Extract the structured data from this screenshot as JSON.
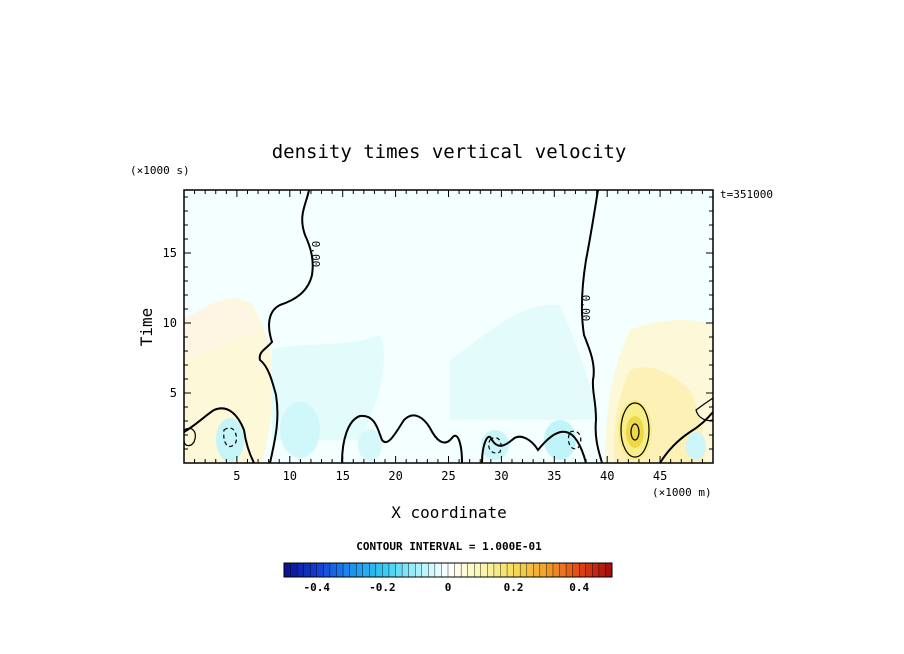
{
  "chart_data": {
    "type": "heatmap",
    "title": "density times vertical velocity",
    "xlabel": "X coordinate",
    "ylabel": "Time",
    "x_unit": "(×1000 m)",
    "y_unit": "(×1000 s)",
    "time_annotation": "t=351000",
    "xlim": [
      0,
      50
    ],
    "ylim": [
      0,
      19.5
    ],
    "x_ticks": [
      5,
      10,
      15,
      20,
      25,
      30,
      35,
      40,
      45
    ],
    "y_ticks": [
      5,
      10,
      15
    ],
    "x_tick_labels": [
      "5",
      "10",
      "15",
      "20",
      "25",
      "30",
      "35",
      "40",
      "45"
    ],
    "y_tick_labels": [
      "5",
      "10",
      "15"
    ],
    "contour_label": "0.00",
    "contour_interval_text": "CONTOUR INTERVAL = 1.000E-01",
    "colorbar": {
      "min": -0.5,
      "max": 0.5,
      "tick_values": [
        -0.4,
        -0.2,
        0,
        0.2,
        0.4
      ],
      "tick_labels": [
        "-0.4",
        "-0.2",
        "0",
        "0.2",
        "0.4"
      ]
    },
    "field_regions": [
      {
        "x": [
          0,
          12
        ],
        "t": [
          0,
          6
        ],
        "sign": "positive",
        "level": 0.05
      },
      {
        "x": [
          1,
          10
        ],
        "t": [
          6,
          12
        ],
        "sign": "positive",
        "level": 0.03
      },
      {
        "x": [
          9,
          20
        ],
        "t": [
          1,
          8
        ],
        "sign": "negative",
        "level": -0.08
      },
      {
        "x": [
          12,
          40
        ],
        "t": [
          0,
          19.5
        ],
        "sign": "negative",
        "level": -0.03
      },
      {
        "x": [
          27,
          38
        ],
        "t": [
          1,
          11
        ],
        "sign": "negative",
        "level": -0.05
      },
      {
        "x": [
          40,
          50
        ],
        "t": [
          0,
          10
        ],
        "sign": "positive",
        "level": 0.06
      },
      {
        "x": [
          42,
          43
        ],
        "t": [
          1,
          4
        ],
        "sign": "positive",
        "level": 0.18
      }
    ]
  }
}
